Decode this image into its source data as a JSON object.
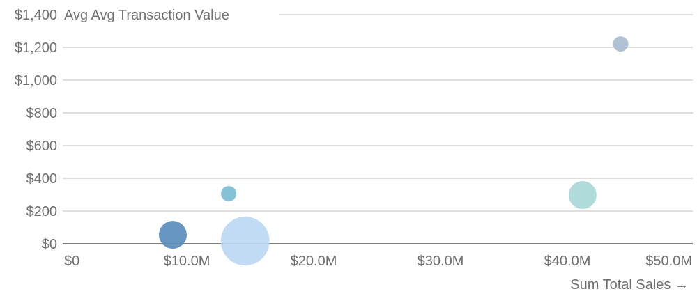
{
  "chart_data": {
    "type": "scatter",
    "variant": "bubble",
    "ylabel": "Avg Avg Transaction Value",
    "xlabel": "Sum Total Sales →",
    "xlim": [
      0,
      50000000
    ],
    "ylim": [
      0,
      1400
    ],
    "x_ticks": [
      0,
      10000000,
      20000000,
      30000000,
      40000000,
      50000000
    ],
    "x_tick_labels": [
      "$0",
      "$10.0M",
      "$20.0M",
      "$30.0M",
      "$40.0M",
      "$50.0M"
    ],
    "y_ticks": [
      0,
      200,
      400,
      600,
      800,
      1000,
      1200,
      1400
    ],
    "y_tick_labels": [
      "$0",
      "$200",
      "$400",
      "$600",
      "$800",
      "$1,000",
      "$1,200",
      "$1,400"
    ],
    "grid": true,
    "points": [
      {
        "x": 8900000,
        "y": 55,
        "size": 20,
        "color": "#5a8dbd"
      },
      {
        "x": 13300000,
        "y": 306,
        "size": 11,
        "color": "#7bbdd3"
      },
      {
        "x": 14600000,
        "y": 17,
        "size": 35,
        "color": "#bcd8f3"
      },
      {
        "x": 41200000,
        "y": 298,
        "size": 20,
        "color": "#a8d8d7"
      },
      {
        "x": 44200000,
        "y": 1221,
        "size": 11,
        "color": "#a7bdcf"
      }
    ]
  }
}
